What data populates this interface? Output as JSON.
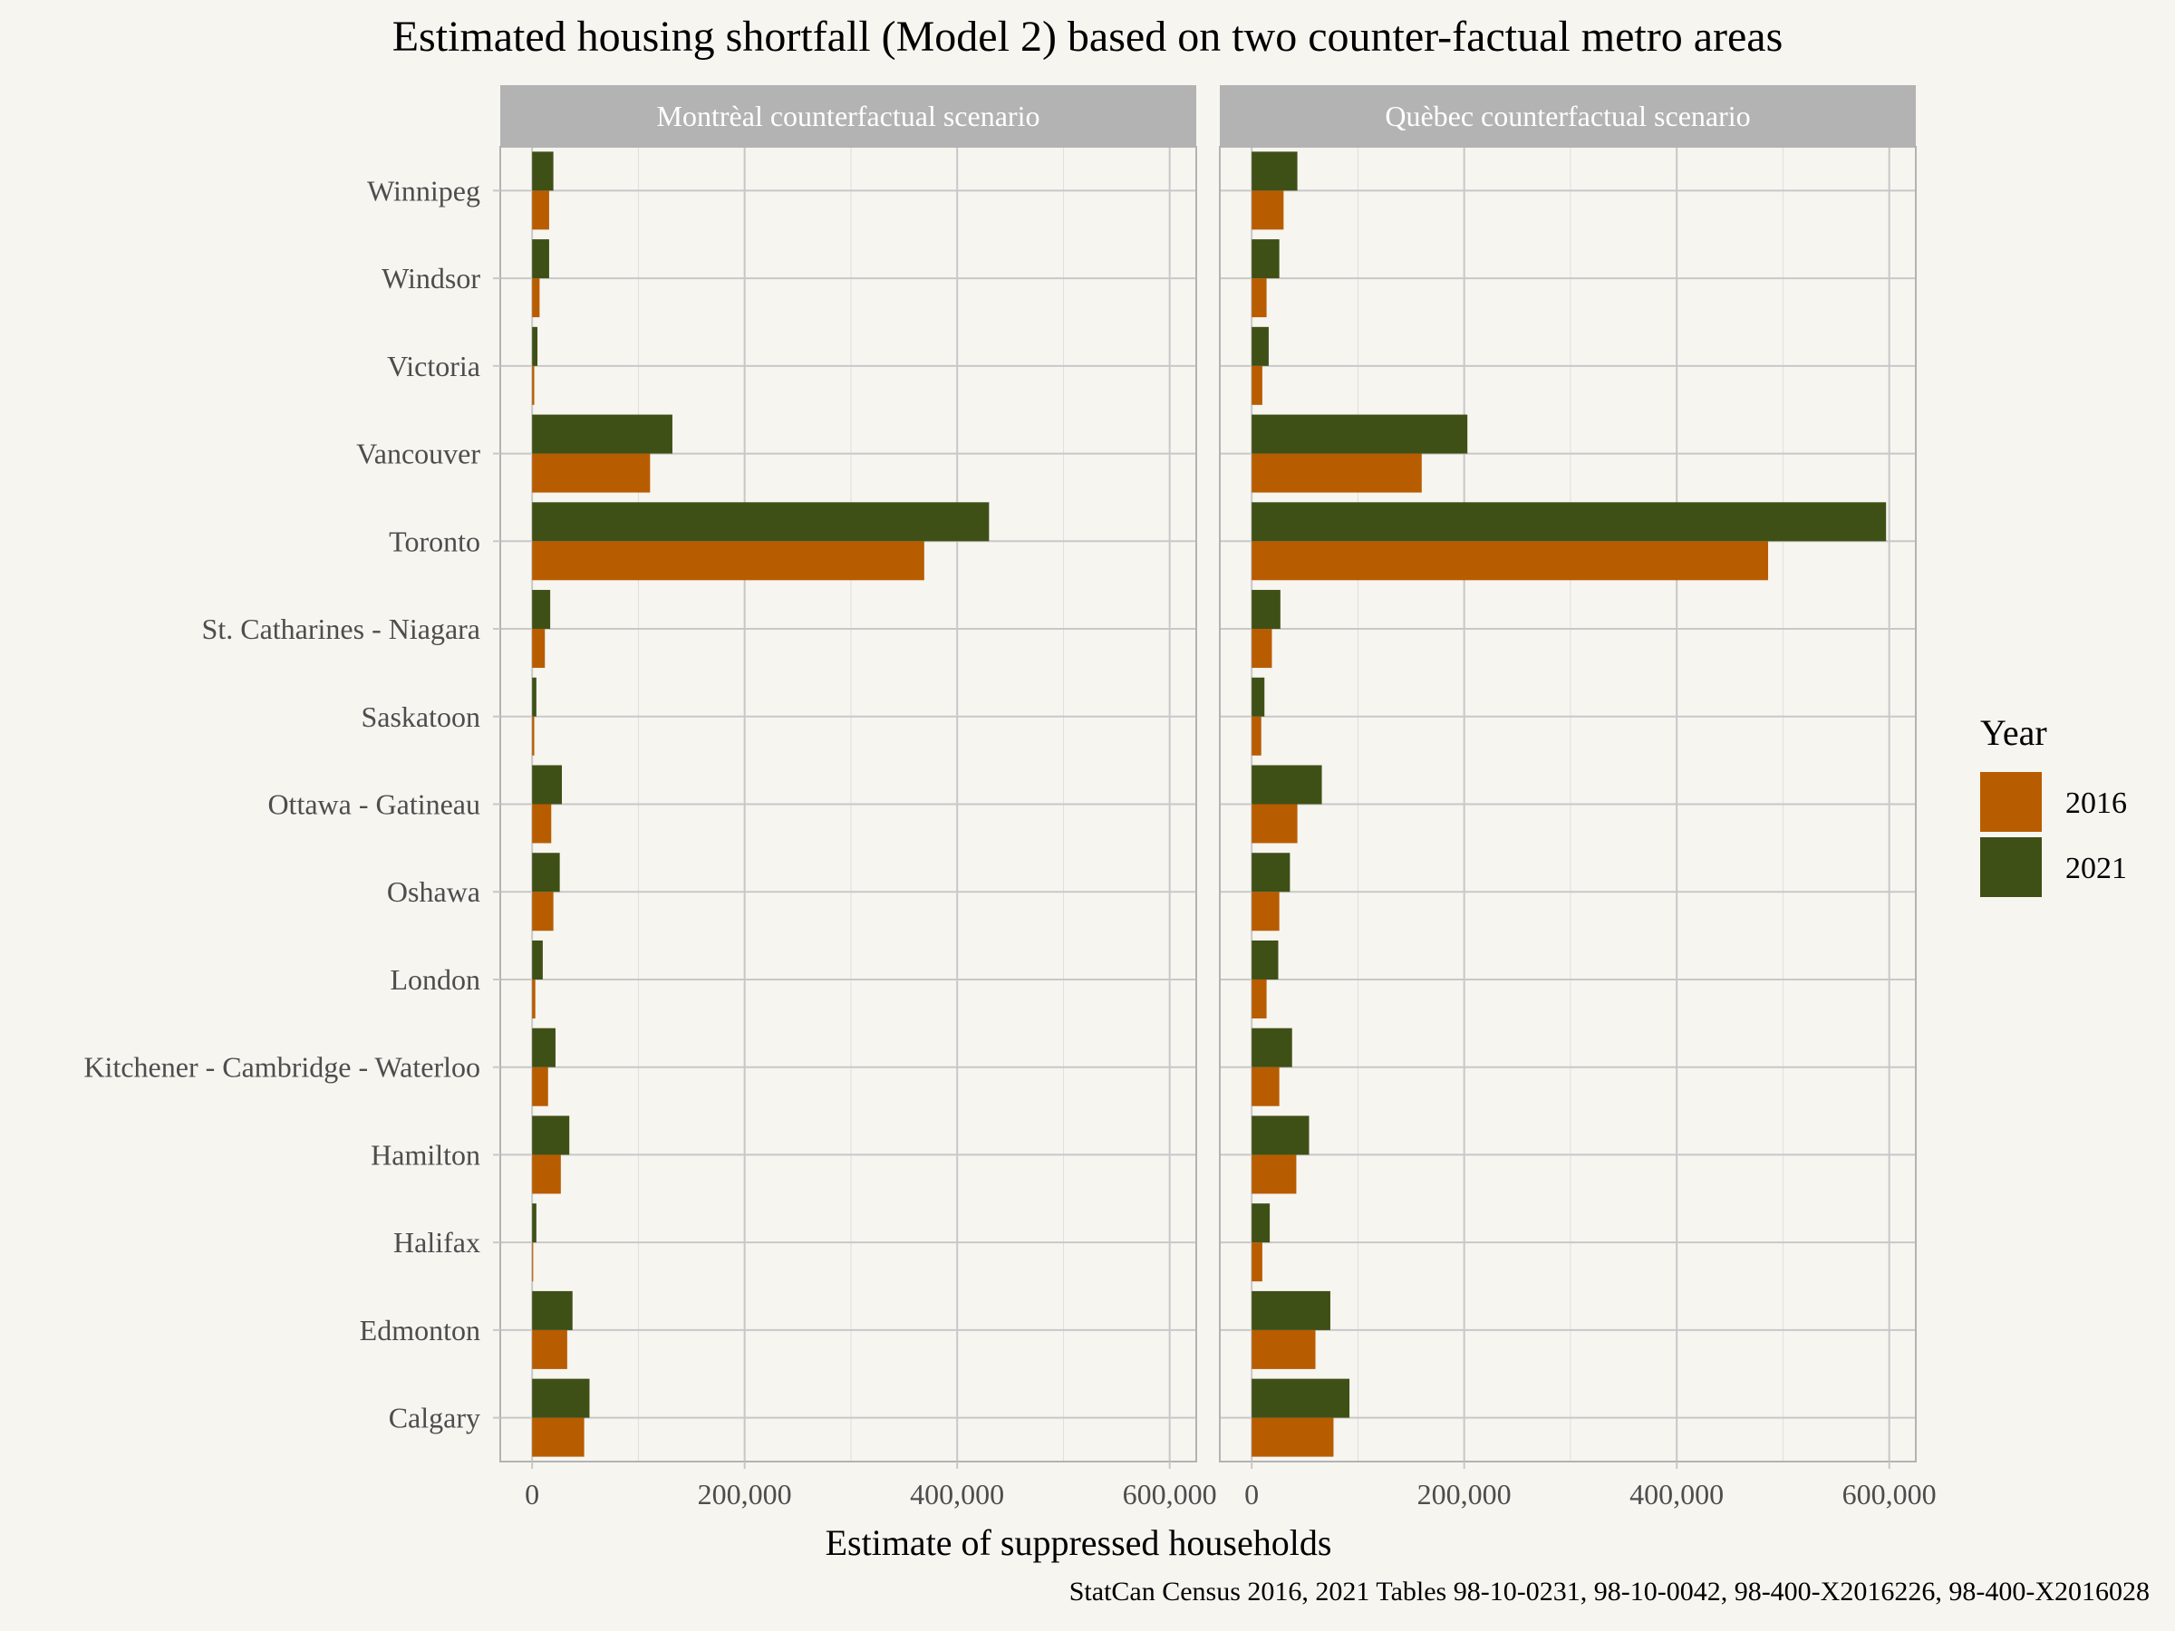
{
  "chart_data": {
    "type": "bar",
    "orientation": "horizontal",
    "title": "Estimated housing shortfall (Model 2) based on two counter-factual metro areas",
    "xlabel": "Estimate of suppressed households",
    "ylabel": "",
    "caption": "StatCan Census 2016, 2021 Tables 98-10-0231, 98-10-0042, 98-400-X2016226, 98-400-X2016028",
    "xlim": [
      -30000,
      625000
    ],
    "x_ticks": [
      0,
      200000,
      400000,
      600000
    ],
    "x_tick_labels": [
      "0",
      "200,000",
      "400,000",
      "600,000"
    ],
    "categories": [
      "Winnipeg",
      "Windsor",
      "Victoria",
      "Vancouver",
      "Toronto",
      "St. Catharines - Niagara",
      "Saskatoon",
      "Ottawa - Gatineau",
      "Oshawa",
      "London",
      "Kitchener - Cambridge - Waterloo",
      "Hamilton",
      "Halifax",
      "Edmonton",
      "Calgary"
    ],
    "legend": {
      "title": "Year",
      "position": "right",
      "entries": [
        {
          "label": "2016",
          "color": "#B85C00"
        },
        {
          "label": "2021",
          "color": "#3F5016"
        }
      ]
    },
    "panels": [
      {
        "title": "Montrèal counterfactual scenario",
        "series": [
          {
            "name": "2016",
            "values": [
              16000,
              7000,
              2000,
              111000,
              369000,
              12000,
              2000,
              18000,
              20000,
              3000,
              15000,
              27000,
              1000,
              33000,
              49000
            ]
          },
          {
            "name": "2021",
            "values": [
              20000,
              16000,
              5000,
              132000,
              430000,
              17000,
              4000,
              28000,
              26000,
              10000,
              22000,
              35000,
              4000,
              38000,
              54000
            ]
          }
        ]
      },
      {
        "title": "Quèbec counterfactual scenario",
        "series": [
          {
            "name": "2016",
            "values": [
              30000,
              14000,
              10000,
              160000,
              486000,
              19000,
              9000,
              43000,
              26000,
              14000,
              26000,
              42000,
              10000,
              60000,
              77000
            ]
          },
          {
            "name": "2021",
            "values": [
              43000,
              26000,
              16000,
              203000,
              597000,
              27000,
              12000,
              66000,
              36000,
              25000,
              38000,
              54000,
              17000,
              74000,
              92000
            ]
          }
        ]
      }
    ]
  },
  "colors": {
    "background": "#F7F5F0",
    "strip": "#B3B3B3",
    "grid": "#C8C8C8",
    "text": "#4D4D4D"
  }
}
